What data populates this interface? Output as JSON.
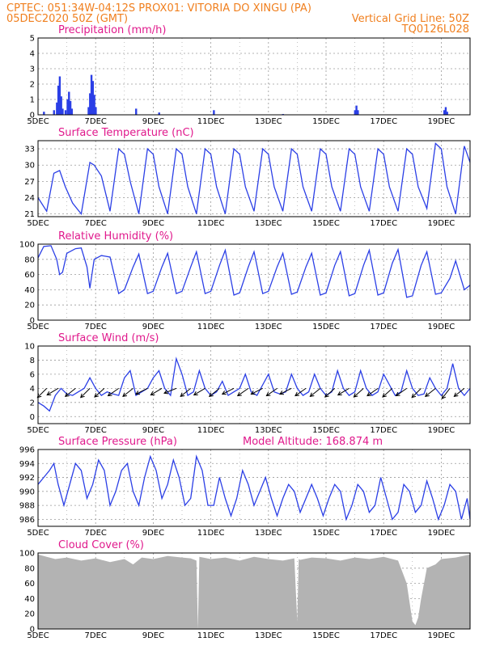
{
  "header": {
    "line1_left": "CPTEC:   051:34W-04:12S   PROX01: VITORIA DO XINGU (PA)",
    "line2_left": "05DEC2020 50Z (GMT)",
    "line2_right": "Vertical Grid Line: 50Z",
    "line3_right": "TQ0126L028"
  },
  "colors": {
    "header": "#f07f1e",
    "panel_title": "#e0198c",
    "series": "#2b3fe6",
    "cloud": "#b3b3b3",
    "grid": "#9a9a9a",
    "arrow": "#000000"
  },
  "chart_data": [
    {
      "id": "precipitation",
      "type": "bar",
      "title": "Precipitation (mm/h)",
      "ylim": [
        0,
        5
      ],
      "yticks": [
        0,
        1,
        2,
        3,
        4,
        5
      ],
      "xticks": [
        "5DEC",
        "7DEC",
        "9DEC",
        "11DEC",
        "13DEC",
        "15DEC",
        "17DEC",
        "19DEC"
      ],
      "x_range_days": [
        5,
        20
      ],
      "points": [
        [
          5.2,
          0.2
        ],
        [
          5.55,
          0.3
        ],
        [
          5.65,
          0.8
        ],
        [
          5.7,
          1.9
        ],
        [
          5.75,
          2.5
        ],
        [
          5.8,
          1.2
        ],
        [
          5.85,
          0.4
        ],
        [
          5.95,
          0.3
        ],
        [
          6.02,
          1.0
        ],
        [
          6.07,
          1.5
        ],
        [
          6.12,
          0.9
        ],
        [
          6.17,
          0.4
        ],
        [
          6.75,
          0.5
        ],
        [
          6.8,
          1.4
        ],
        [
          6.85,
          2.6
        ],
        [
          6.9,
          2.2
        ],
        [
          6.95,
          1.3
        ],
        [
          7.0,
          0.5
        ],
        [
          8.4,
          0.4
        ],
        [
          9.2,
          0.15
        ],
        [
          11.1,
          0.3
        ],
        [
          13.5,
          0.05
        ],
        [
          16.0,
          0.3
        ],
        [
          16.05,
          0.6
        ],
        [
          16.1,
          0.3
        ],
        [
          19.1,
          0.3
        ],
        [
          19.15,
          0.5
        ],
        [
          19.2,
          0.2
        ]
      ]
    },
    {
      "id": "temperature",
      "type": "line",
      "title": "Surface Temperature (nC)",
      "ylim": [
        20.5,
        34.5
      ],
      "yticks": [
        21,
        24,
        27,
        30,
        33
      ],
      "xticks": [
        "5DEC",
        "7DEC",
        "9DEC",
        "11DEC",
        "13DEC",
        "15DEC",
        "17DEC",
        "19DEC"
      ],
      "x_range_days": [
        5,
        20
      ],
      "x": [
        5.0,
        5.3,
        5.55,
        5.75,
        5.95,
        6.2,
        6.5,
        6.8,
        6.95,
        7.2,
        7.5,
        7.8,
        8.0,
        8.2,
        8.5,
        8.8,
        9.0,
        9.2,
        9.5,
        9.8,
        10.0,
        10.2,
        10.5,
        10.8,
        11.0,
        11.2,
        11.5,
        11.8,
        12.0,
        12.2,
        12.5,
        12.8,
        13.0,
        13.2,
        13.5,
        13.8,
        14.0,
        14.2,
        14.5,
        14.8,
        15.0,
        15.2,
        15.5,
        15.8,
        16.0,
        16.2,
        16.5,
        16.8,
        17.0,
        17.2,
        17.5,
        17.8,
        18.0,
        18.2,
        18.5,
        18.8,
        19.0,
        19.2,
        19.5,
        19.8,
        20.0
      ],
      "values": [
        24,
        21.5,
        28.5,
        29,
        26,
        23,
        21,
        30.5,
        30,
        28,
        21.5,
        33,
        32,
        27,
        21,
        33,
        32,
        26,
        21,
        33,
        32,
        26,
        21,
        33,
        32,
        26,
        21,
        33,
        32,
        26,
        21.5,
        33,
        32,
        26,
        21.5,
        33,
        32,
        26,
        21.5,
        33,
        32,
        26,
        21.5,
        33,
        32,
        26,
        21.5,
        33,
        32,
        26,
        21.5,
        33,
        32,
        26,
        22,
        34,
        33,
        26,
        21,
        33.5,
        30.5
      ]
    },
    {
      "id": "humidity",
      "type": "line",
      "title": "Relative Humidity (%)",
      "ylim": [
        0,
        100
      ],
      "yticks": [
        0,
        20,
        40,
        60,
        80,
        100
      ],
      "xticks": [
        "5DEC",
        "7DEC",
        "9DEC",
        "11DEC",
        "13DEC",
        "15DEC",
        "17DEC",
        "19DEC"
      ],
      "x_range_days": [
        5,
        20
      ],
      "x": [
        5.0,
        5.2,
        5.45,
        5.65,
        5.75,
        5.85,
        6.0,
        6.3,
        6.5,
        6.7,
        6.8,
        6.95,
        7.2,
        7.5,
        7.8,
        8.0,
        8.3,
        8.5,
        8.8,
        9.0,
        9.3,
        9.5,
        9.8,
        10.0,
        10.3,
        10.5,
        10.8,
        11.0,
        11.3,
        11.5,
        11.8,
        12.0,
        12.3,
        12.5,
        12.8,
        13.0,
        13.3,
        13.5,
        13.8,
        14.0,
        14.3,
        14.5,
        14.8,
        15.0,
        15.3,
        15.5,
        15.8,
        16.0,
        16.3,
        16.5,
        16.8,
        17.0,
        17.3,
        17.5,
        17.8,
        18.0,
        18.3,
        18.5,
        18.8,
        19.0,
        19.3,
        19.5,
        19.8,
        20.0
      ],
      "values": [
        82,
        97,
        98,
        80,
        60,
        63,
        88,
        94,
        95,
        70,
        42,
        80,
        85,
        83,
        35,
        40,
        70,
        87,
        35,
        38,
        70,
        88,
        35,
        38,
        70,
        90,
        35,
        38,
        72,
        92,
        33,
        36,
        70,
        90,
        35,
        38,
        70,
        88,
        34,
        37,
        70,
        88,
        33,
        36,
        72,
        90,
        32,
        35,
        72,
        92,
        33,
        36,
        75,
        93,
        30,
        32,
        72,
        90,
        34,
        36,
        55,
        78,
        40,
        46
      ]
    },
    {
      "id": "wind",
      "type": "line",
      "title": "Surface Wind (m/s)",
      "ylim": [
        -1,
        10
      ],
      "yticks": [
        0,
        2,
        4,
        6,
        8,
        10
      ],
      "xticks": [
        "5DEC",
        "7DEC",
        "9DEC",
        "11DEC",
        "13DEC",
        "15DEC",
        "17DEC",
        "19DEC"
      ],
      "x_range_days": [
        5,
        20
      ],
      "x": [
        5.0,
        5.2,
        5.4,
        5.6,
        5.8,
        6.0,
        6.2,
        6.4,
        6.6,
        6.8,
        7.0,
        7.2,
        7.4,
        7.6,
        7.8,
        8.0,
        8.2,
        8.4,
        8.6,
        8.8,
        9.0,
        9.2,
        9.4,
        9.6,
        9.8,
        10.0,
        10.2,
        10.4,
        10.6,
        10.8,
        11.0,
        11.2,
        11.4,
        11.6,
        11.8,
        12.0,
        12.2,
        12.4,
        12.6,
        12.8,
        13.0,
        13.2,
        13.4,
        13.6,
        13.8,
        14.0,
        14.2,
        14.4,
        14.6,
        14.8,
        15.0,
        15.2,
        15.4,
        15.6,
        15.8,
        16.0,
        16.2,
        16.4,
        16.6,
        16.8,
        17.0,
        17.2,
        17.4,
        17.6,
        17.8,
        18.0,
        18.2,
        18.4,
        18.6,
        18.8,
        19.0,
        19.2,
        19.4,
        19.6,
        19.8,
        20.0
      ],
      "values": [
        2,
        1.5,
        0.8,
        3,
        4,
        3.2,
        3,
        3.5,
        4,
        5.5,
        4,
        3,
        3.5,
        3.2,
        3,
        5.5,
        6.5,
        3,
        3.5,
        4,
        5.5,
        6.5,
        4,
        3,
        8.2,
        6,
        3,
        3.5,
        6.5,
        4,
        3,
        3.5,
        5,
        3,
        3.5,
        4,
        6,
        3.5,
        3,
        4.5,
        6,
        3.5,
        3.2,
        3.5,
        6,
        4,
        3,
        3.5,
        6,
        4,
        3,
        3.5,
        6.5,
        4,
        3,
        3.5,
        6.5,
        4,
        3,
        3.5,
        6,
        4.5,
        3,
        3.5,
        6.5,
        4,
        3,
        3.2,
        5.5,
        4,
        3,
        4,
        7.5,
        4,
        3,
        4
      ],
      "vectors": [
        {
          "x": 5.3,
          "dx": -1,
          "dy": -1
        },
        {
          "x": 5.7,
          "dx": -1,
          "dy": -0.6
        },
        {
          "x": 6.3,
          "dx": -1,
          "dy": -0.8
        },
        {
          "x": 6.8,
          "dx": -1,
          "dy": -1
        },
        {
          "x": 7.3,
          "dx": -1,
          "dy": -0.9
        },
        {
          "x": 7.8,
          "dx": -1,
          "dy": -0.7
        },
        {
          "x": 8.3,
          "dx": -1,
          "dy": -0.8
        },
        {
          "x": 8.8,
          "dx": -1,
          "dy": -0.5
        },
        {
          "x": 9.3,
          "dx": -1,
          "dy": -0.6
        },
        {
          "x": 9.8,
          "dx": -1,
          "dy": -0.4
        },
        {
          "x": 10.3,
          "dx": -1,
          "dy": -0.8
        },
        {
          "x": 10.8,
          "dx": -1,
          "dy": -0.6
        },
        {
          "x": 11.3,
          "dx": -1,
          "dy": -0.8
        },
        {
          "x": 11.8,
          "dx": -1,
          "dy": -0.5
        },
        {
          "x": 12.3,
          "dx": -1,
          "dy": -0.7
        },
        {
          "x": 12.8,
          "dx": -1,
          "dy": -0.5
        },
        {
          "x": 13.3,
          "dx": -1,
          "dy": -0.7
        },
        {
          "x": 13.8,
          "dx": -1,
          "dy": -0.5
        },
        {
          "x": 14.3,
          "dx": -1,
          "dy": -0.7
        },
        {
          "x": 14.8,
          "dx": -1,
          "dy": -0.8
        },
        {
          "x": 15.3,
          "dx": -1,
          "dy": -0.9
        },
        {
          "x": 15.8,
          "dx": -1,
          "dy": -0.6
        },
        {
          "x": 16.3,
          "dx": -1,
          "dy": -0.9
        },
        {
          "x": 16.8,
          "dx": -1,
          "dy": -0.7
        },
        {
          "x": 17.3,
          "dx": -1,
          "dy": -0.9
        },
        {
          "x": 17.8,
          "dx": -1,
          "dy": -0.7
        },
        {
          "x": 18.3,
          "dx": -1,
          "dy": -1
        },
        {
          "x": 18.8,
          "dx": -1,
          "dy": -0.8
        },
        {
          "x": 19.3,
          "dx": -1,
          "dy": -1.3
        },
        {
          "x": 19.8,
          "dx": -1,
          "dy": -0.8
        }
      ]
    },
    {
      "id": "pressure",
      "type": "line",
      "title": "Surface Pressure (hPa)",
      "subtitle": "Model Altitude: 168.874 m",
      "ylim": [
        985,
        996
      ],
      "yticks": [
        986,
        988,
        990,
        992,
        994,
        996
      ],
      "xticks": [
        "5DEC",
        "7DEC",
        "9DEC",
        "11DEC",
        "13DEC",
        "15DEC",
        "17DEC",
        "19DEC"
      ],
      "x_range_days": [
        5,
        20
      ],
      "x": [
        5.0,
        5.2,
        5.4,
        5.55,
        5.7,
        5.9,
        6.1,
        6.3,
        6.5,
        6.7,
        6.9,
        7.1,
        7.3,
        7.5,
        7.7,
        7.9,
        8.1,
        8.3,
        8.5,
        8.7,
        8.9,
        9.1,
        9.3,
        9.5,
        9.7,
        9.9,
        10.1,
        10.3,
        10.5,
        10.7,
        10.9,
        11.1,
        11.3,
        11.5,
        11.7,
        11.9,
        12.1,
        12.3,
        12.5,
        12.7,
        12.9,
        13.1,
        13.3,
        13.5,
        13.7,
        13.9,
        14.1,
        14.3,
        14.5,
        14.7,
        14.9,
        15.1,
        15.3,
        15.5,
        15.7,
        15.9,
        16.1,
        16.3,
        16.5,
        16.7,
        16.9,
        17.1,
        17.3,
        17.5,
        17.7,
        17.9,
        18.1,
        18.3,
        18.5,
        18.7,
        18.9,
        19.1,
        19.3,
        19.5,
        19.7,
        19.9,
        20.0
      ],
      "values": [
        991,
        992,
        993,
        994,
        991,
        988,
        991,
        994,
        993,
        989,
        991,
        994.5,
        993,
        988,
        990,
        993,
        994,
        990,
        988,
        992,
        995,
        993,
        989,
        991,
        994.5,
        992,
        988,
        989,
        995,
        993,
        988,
        988,
        992,
        989,
        986.5,
        989,
        993,
        991,
        988,
        990,
        992,
        989,
        986.5,
        989,
        991,
        990,
        987,
        989,
        991,
        989,
        986.5,
        989,
        991,
        990,
        986,
        988,
        991,
        990,
        987,
        988,
        992,
        989,
        986,
        987,
        991,
        990,
        987,
        988,
        991.5,
        989,
        986,
        988,
        991,
        990,
        986,
        989,
        986
      ]
    },
    {
      "id": "cloud",
      "type": "area",
      "title": "Cloud Cover (%)",
      "ylim": [
        0,
        100
      ],
      "yticks": [
        0,
        20,
        40,
        60,
        80,
        100
      ],
      "xticks": [
        "5DEC",
        "7DEC",
        "9DEC",
        "11DEC",
        "13DEC",
        "15DEC",
        "17DEC",
        "19DEC"
      ],
      "x_range_days": [
        5,
        20
      ],
      "x": [
        5.0,
        5.3,
        5.6,
        6.0,
        6.5,
        7.0,
        7.5,
        8.0,
        8.3,
        8.6,
        9.0,
        9.5,
        10.0,
        10.3,
        10.5,
        10.55,
        10.6,
        11.0,
        11.5,
        12.0,
        12.5,
        13.0,
        13.5,
        13.9,
        14.0,
        14.05,
        14.1,
        14.5,
        15.0,
        15.5,
        16.0,
        16.5,
        17.0,
        17.5,
        17.8,
        18.0,
        18.1,
        18.2,
        18.3,
        18.5,
        18.8,
        19.0,
        19.5,
        20.0
      ],
      "values": [
        98,
        95,
        92,
        94,
        90,
        93,
        88,
        92,
        85,
        94,
        92,
        96,
        94,
        93,
        90,
        0,
        95,
        92,
        94,
        90,
        95,
        92,
        90,
        93,
        10,
        92,
        91,
        94,
        93,
        90,
        94,
        92,
        95,
        90,
        60,
        10,
        5,
        15,
        40,
        80,
        85,
        92,
        94,
        98
      ]
    }
  ]
}
